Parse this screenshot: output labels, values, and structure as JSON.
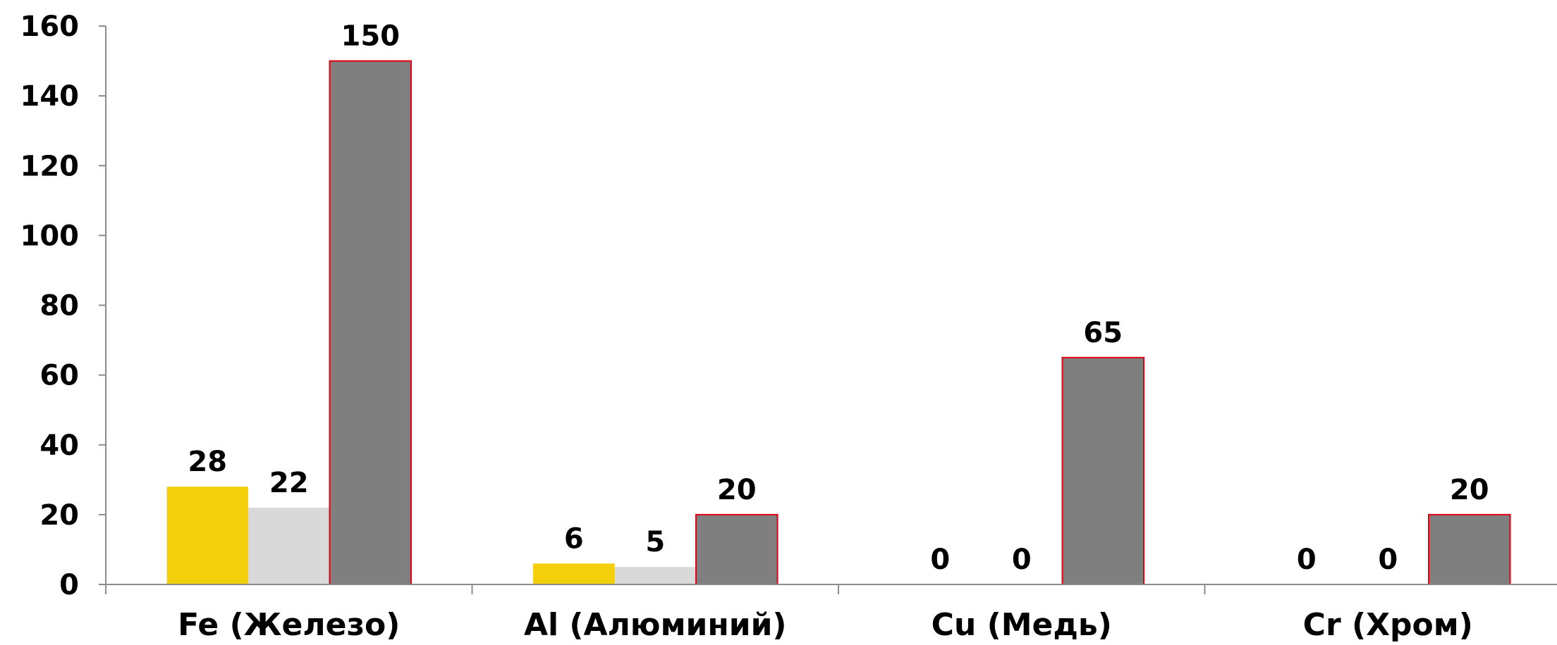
{
  "chart_data": {
    "type": "bar",
    "categories": [
      "Fe (Железо)",
      "Al (Алюминий)",
      "Cu (Медь)",
      "Cr (Хром)"
    ],
    "series": [
      {
        "values": [
          28,
          6,
          0,
          0
        ],
        "color": "#F4D00C"
      },
      {
        "values": [
          22,
          5,
          0,
          0
        ],
        "color": "#D9D9D9"
      },
      {
        "values": [
          150,
          20,
          65,
          20
        ],
        "color": "#7F7F7F",
        "border_color": "#E3000F"
      }
    ],
    "ylim": [
      0,
      160
    ],
    "yticks": [
      0,
      20,
      40,
      60,
      80,
      100,
      120,
      140,
      160
    ],
    "grid": false,
    "legend": false
  },
  "colors": {
    "axis": "#8C8C8C",
    "text": "#000000"
  }
}
